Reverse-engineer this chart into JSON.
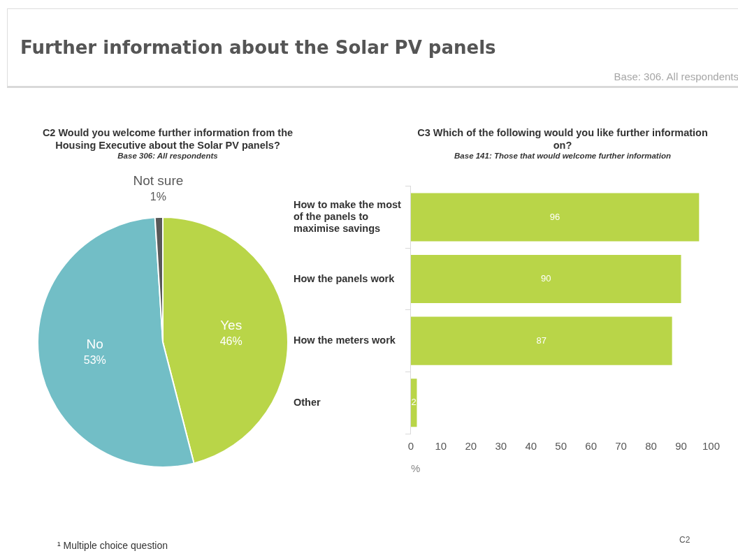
{
  "chart_data": [
    {
      "type": "pie",
      "title": "C2 Would you welcome further information from the Housing Executive about the Solar PV panels?",
      "subtitle": "Base 306: All respondents",
      "categories": [
        "Yes",
        "No",
        "Not sure"
      ],
      "values": [
        46,
        53,
        1
      ],
      "colors": [
        "#b9d548",
        "#72bec6",
        "#595959"
      ],
      "value_labels": [
        "46%",
        "53%",
        "1%"
      ],
      "annotations": [
        "Further information about the Solar PV panels",
        "Base: 306. All respondents"
      ]
    },
    {
      "type": "bar",
      "orientation": "horizontal",
      "title": "C3 Which of the following would you like further information on?",
      "subtitle": "Base 141: Those that would welcome further information",
      "categories": [
        "How to make the most of the panels to maximise savings",
        "How the panels work",
        "How the meters work",
        "Other"
      ],
      "values": [
        96,
        90,
        87,
        2
      ],
      "color": "#b9d548",
      "xlim": [
        0,
        100
      ],
      "xticks": [
        0,
        10,
        20,
        30,
        40,
        50,
        60,
        70,
        80,
        90,
        100
      ],
      "xlabel": "%",
      "data_labels": true,
      "annotations": [
        "¹ Multiple choice question",
        "C2"
      ]
    }
  ]
}
